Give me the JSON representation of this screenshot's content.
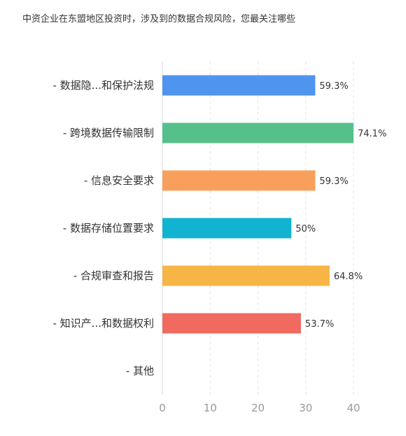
{
  "chart_data": {
    "type": "bar",
    "orientation": "horizontal",
    "title": "中资企业在东盟地区投资时，涉及到的数据合规风险，您最关注哪些",
    "xlabel": "",
    "ylabel": "",
    "categories": [
      "- 数据隐...和保护法规",
      "- 跨境数据传输限制",
      "- 信息安全要求",
      "- 数据存储位置要求",
      "- 合规审查和报告",
      "- 知识产...和数据权利",
      "- 其他"
    ],
    "values": [
      32,
      40,
      32,
      27,
      35,
      29,
      0
    ],
    "data_labels": [
      "59.3%",
      "74.1%",
      "59.3%",
      "50%",
      "64.8%",
      "53.7%",
      ""
    ],
    "colors": [
      "#4f94ef",
      "#56c08b",
      "#f8a05b",
      "#12b3d0",
      "#f7b545",
      "#f06a60",
      "#999999"
    ],
    "xlim": [
      0,
      40
    ],
    "xticks": [
      0,
      10,
      20,
      30,
      40
    ],
    "grid": true
  }
}
